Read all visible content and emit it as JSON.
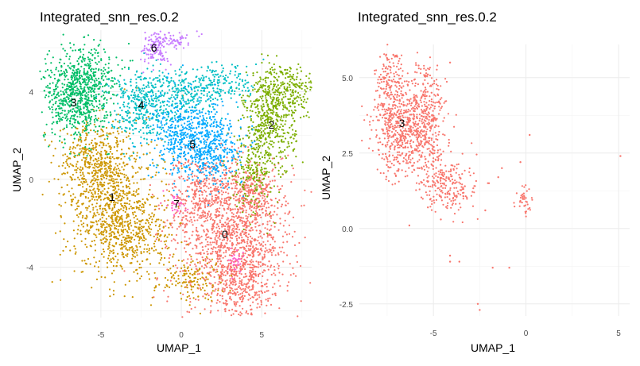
{
  "chart_data": [
    {
      "type": "scatter",
      "title": "Integrated_snn_res.0.2",
      "xlabel": "UMAP_1",
      "ylabel": "UMAP_2",
      "xlim": [
        -8.8,
        8.1
      ],
      "ylim": [
        -6.3,
        6.8
      ],
      "xticks": [
        -5,
        0,
        5
      ],
      "yticks": [
        -4,
        0,
        4
      ],
      "xtick_labels": [
        "-5",
        "0",
        "5"
      ],
      "ytick_labels": [
        "-4",
        "0",
        "4"
      ],
      "grid": true,
      "legend": "none",
      "series": [
        {
          "name": "0",
          "color": "#F8766D",
          "label_at": [
            2.7,
            -2.5
          ]
        },
        {
          "name": "1",
          "color": "#CD9600",
          "label_at": [
            -4.3,
            -0.8
          ]
        },
        {
          "name": "2",
          "color": "#7CAE00",
          "label_at": [
            5.6,
            2.5
          ]
        },
        {
          "name": "3",
          "color": "#00BE67",
          "label_at": [
            -6.7,
            3.5
          ]
        },
        {
          "name": "4",
          "color": "#00BFC4",
          "label_at": [
            -2.5,
            3.4
          ]
        },
        {
          "name": "5",
          "color": "#00A9FF",
          "label_at": [
            0.7,
            1.6
          ]
        },
        {
          "name": "6",
          "color": "#C77CFF",
          "label_at": [
            -1.7,
            6.0
          ]
        },
        {
          "name": "7",
          "color": "#FF61CC",
          "label_at": [
            -0.3,
            -1.1
          ]
        }
      ]
    },
    {
      "type": "scatter",
      "title": "Integrated_snn_res.0.2",
      "xlabel": "UMAP_1",
      "ylabel": "UMAP_2",
      "xlim": [
        -9.0,
        5.6
      ],
      "ylim": [
        -2.9,
        6.1
      ],
      "xticks": [
        -5,
        0,
        5
      ],
      "yticks": [
        -2.5,
        0.0,
        2.5,
        5.0
      ],
      "xtick_labels": [
        "-5",
        "0",
        "5"
      ],
      "ytick_labels": [
        "-2.5",
        "0.0",
        "2.5",
        "5.0"
      ],
      "grid": true,
      "legend": "none",
      "series": [
        {
          "name": "3",
          "color": "#F8766D",
          "label_at": [
            -6.7,
            3.5
          ]
        }
      ],
      "outliers": [
        [
          5.1,
          2.4
        ],
        [
          0.2,
          3.1
        ],
        [
          -0.3,
          2.2
        ],
        [
          -1.3,
          2.0
        ],
        [
          -1.5,
          1.7
        ],
        [
          -2.0,
          1.5
        ],
        [
          -4.1,
          -0.9
        ],
        [
          -4.1,
          -1.1
        ],
        [
          -3.6,
          -1.1
        ],
        [
          -1.8,
          -1.3
        ],
        [
          -0.9,
          -1.3
        ],
        [
          -2.6,
          -2.5
        ],
        [
          -2.5,
          -2.7
        ],
        [
          -5.3,
          0.7
        ],
        [
          -4.6,
          0.3
        ],
        [
          -6.3,
          0.1
        ],
        [
          -5.1,
          4.5
        ],
        [
          -5.3,
          5.1
        ],
        [
          -4.1,
          5.5
        ],
        [
          -5.8,
          5.4
        ],
        [
          -3.3,
          1.4
        ],
        [
          -2.2,
          0.6
        ]
      ]
    }
  ]
}
